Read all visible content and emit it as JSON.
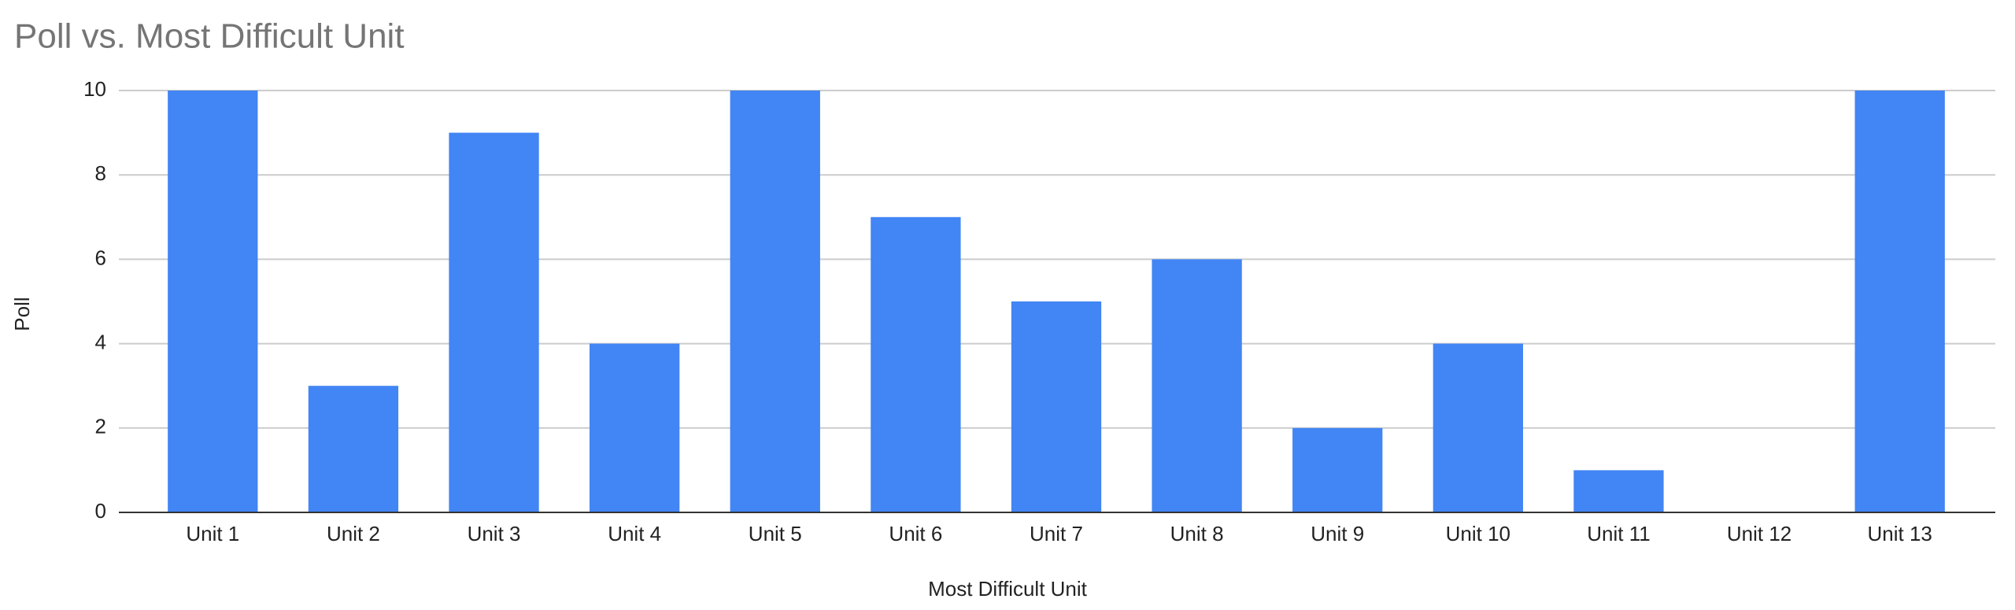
{
  "chart_data": {
    "type": "bar",
    "title": "Poll vs. Most Difficult Unit",
    "x_label": "Most Difficult Unit",
    "y_label": "Poll",
    "categories": [
      "Unit 1",
      "Unit 2",
      "Unit 3",
      "Unit 4",
      "Unit 5",
      "Unit 6",
      "Unit 7",
      "Unit 8",
      "Unit 9",
      "Unit 10",
      "Unit 11",
      "Unit 12",
      "Unit 13"
    ],
    "values": [
      10,
      3,
      9,
      4,
      10,
      7,
      5,
      6,
      2,
      4,
      1,
      0,
      10
    ],
    "color": "#4285f4",
    "ylim": [
      0,
      10
    ],
    "yticks": [
      0,
      2,
      4,
      6,
      8,
      10
    ],
    "grid": true
  }
}
